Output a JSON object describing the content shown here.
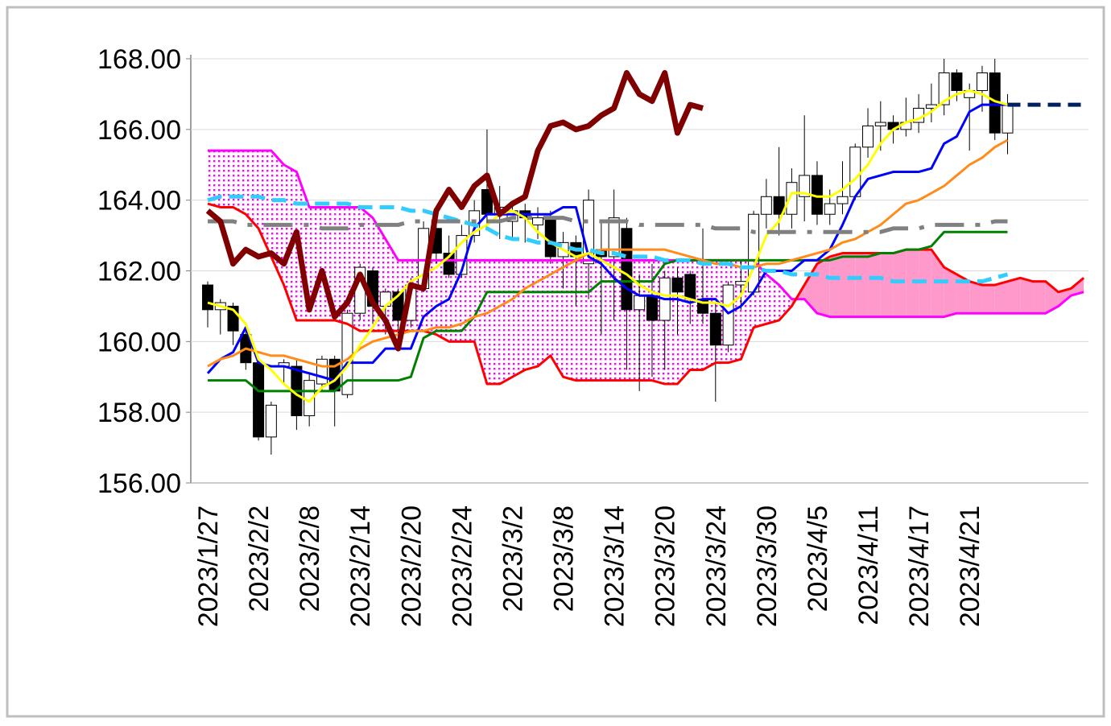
{
  "chart_data": {
    "type": "candlestick",
    "categories": [
      "2023/1/27",
      null,
      null,
      null,
      "2023/2/2",
      null,
      null,
      null,
      "2023/2/8",
      null,
      null,
      null,
      "2023/2/14",
      null,
      null,
      null,
      "2023/2/20",
      null,
      null,
      null,
      "2023/2/24",
      null,
      null,
      null,
      "2023/3/2",
      null,
      null,
      null,
      "2023/3/8",
      null,
      null,
      null,
      "2023/3/14",
      null,
      null,
      null,
      "2023/3/20",
      null,
      null,
      null,
      "2023/3/24",
      null,
      null,
      null,
      "2023/3/30",
      null,
      null,
      null,
      "2023/4/5",
      null,
      null,
      null,
      "2023/4/11",
      null,
      null,
      null,
      "2023/4/17",
      null,
      null,
      null,
      "2023/4/21",
      null,
      null,
      null,
      null,
      null,
      null,
      null,
      null,
      null
    ],
    "ylim": [
      156,
      168
    ],
    "yticks": [
      {
        "value": 156,
        "label": "156.00"
      },
      {
        "value": 158,
        "label": "158.00"
      },
      {
        "value": 160,
        "label": "160.00"
      },
      {
        "value": 162,
        "label": "162.00"
      },
      {
        "value": 164,
        "label": "164.00"
      },
      {
        "value": 166,
        "label": "166.00"
      },
      {
        "value": 168,
        "label": "168.00"
      }
    ],
    "grid": true,
    "up_color": "#ffffff",
    "down_color": "#000000",
    "cloud_colors": [
      "#ff99cc",
      "#ff00ff"
    ],
    "open": [
      161.6,
      160.9,
      161.0,
      160.2,
      159.4,
      157.3,
      159.3,
      159.3,
      157.9,
      158.8,
      159.5,
      158.5,
      160.8,
      162.0,
      161.0,
      161.4,
      160.6,
      161.5,
      163.2,
      162.5,
      161.9,
      163.0,
      164.3,
      163.6,
      163.4,
      163.7,
      163.3,
      163.5,
      162.4,
      162.8,
      162.2,
      162.6,
      162.4,
      163.2,
      160.9,
      161.3,
      160.6,
      161.8,
      161.9,
      161.2,
      160.8,
      159.9,
      161.6,
      161.4,
      163.6,
      164.1,
      163.6,
      164.1,
      164.7,
      163.6,
      163.9,
      164.1,
      165.5,
      166.1,
      166.2,
      166.0,
      166.2,
      166.6,
      166.7,
      167.6,
      166.9,
      167.1,
      167.6,
      165.9,
      null,
      null,
      null,
      null,
      null,
      null
    ],
    "high": [
      161.7,
      161.2,
      161.1,
      160.4,
      159.5,
      158.3,
      159.5,
      159.5,
      159.1,
      159.6,
      159.6,
      160.9,
      162.2,
      162.1,
      161.5,
      161.5,
      161.8,
      163.4,
      163.7,
      163.0,
      163.3,
      164.0,
      166.0,
      164.4,
      163.9,
      163.9,
      163.8,
      163.7,
      163.1,
      163.0,
      164.3,
      163.4,
      164.3,
      163.5,
      161.9,
      162.2,
      162.0,
      162.1,
      162.0,
      163.2,
      161.1,
      161.7,
      162.3,
      163.7,
      164.6,
      165.5,
      164.9,
      166.4,
      165.1,
      164.3,
      165.1,
      165.6,
      166.6,
      166.8,
      166.4,
      166.9,
      167.0,
      167.3,
      168.0,
      167.7,
      167.3,
      167.8,
      168.0,
      167.0,
      null,
      null,
      null,
      null,
      null,
      null
    ],
    "low": [
      160.4,
      160.2,
      159.9,
      159.2,
      157.2,
      156.8,
      158.8,
      157.5,
      157.6,
      158.6,
      157.6,
      158.4,
      160.6,
      160.5,
      160.2,
      160.1,
      160.4,
      161.4,
      162.2,
      161.8,
      161.8,
      162.8,
      163.3,
      162.9,
      162.9,
      162.8,
      162.9,
      162.2,
      161.5,
      161.0,
      161.2,
      160.2,
      160.6,
      159.2,
      158.6,
      159.0,
      159.2,
      160.2,
      160.5,
      160.5,
      158.3,
      159.7,
      160.9,
      161.3,
      163.2,
      163.0,
      163.2,
      163.4,
      163.3,
      163.3,
      163.6,
      164.0,
      165.2,
      165.4,
      165.6,
      165.8,
      165.9,
      166.2,
      166.4,
      166.8,
      165.4,
      166.5,
      165.7,
      165.3,
      null,
      null,
      null,
      null,
      null,
      null
    ],
    "close": [
      160.9,
      161.1,
      160.3,
      159.4,
      157.3,
      158.2,
      159.4,
      157.9,
      158.9,
      159.5,
      158.6,
      160.8,
      162.1,
      161.0,
      161.4,
      160.6,
      161.6,
      163.2,
      162.5,
      161.9,
      163.0,
      163.7,
      163.6,
      163.8,
      163.7,
      163.5,
      163.5,
      162.4,
      162.8,
      162.4,
      164.0,
      162.4,
      163.5,
      160.9,
      161.3,
      160.6,
      161.8,
      161.4,
      161.2,
      160.8,
      159.9,
      161.6,
      161.7,
      163.6,
      164.1,
      163.6,
      164.5,
      164.7,
      163.6,
      163.9,
      164.1,
      165.5,
      166.1,
      166.2,
      166.0,
      166.2,
      166.6,
      166.7,
      167.6,
      167.1,
      167.1,
      167.6,
      165.9,
      166.7,
      null,
      null,
      null,
      null,
      null,
      null
    ],
    "series": [
      {
        "color": "#ff00ff",
        "values": [
          165.4,
          165.4,
          165.4,
          165.4,
          165.4,
          165.4,
          165.0,
          164.8,
          163.8,
          163.8,
          163.8,
          163.8,
          163.8,
          163.5,
          162.9,
          162.3,
          162.3,
          162.3,
          162.3,
          162.3,
          162.3,
          162.3,
          162.3,
          162.3,
          162.3,
          162.3,
          162.3,
          162.3,
          162.3,
          162.3,
          162.3,
          162.3,
          162.3,
          162.3,
          162.3,
          162.3,
          162.3,
          162.3,
          162.3,
          162.3,
          162.3,
          162.3,
          162.3,
          162.3,
          161.9,
          161.6,
          161.2,
          161.2,
          160.8,
          160.7,
          160.7,
          160.7,
          160.7,
          160.7,
          160.7,
          160.7,
          160.7,
          160.7,
          160.7,
          160.8,
          160.8,
          160.8,
          160.8,
          160.8,
          160.8,
          160.8,
          160.8,
          161.0,
          161.3,
          161.4
        ]
      },
      {
        "color": "#ff0000",
        "values": [
          163.9,
          163.8,
          163.8,
          163.6,
          163.2,
          162.4,
          161.6,
          160.6,
          160.6,
          160.6,
          160.6,
          160.5,
          160.3,
          160.3,
          160.3,
          160.3,
          160.3,
          160.3,
          160.2,
          160.0,
          160.0,
          160.0,
          158.8,
          158.8,
          159.0,
          159.2,
          159.3,
          159.6,
          159.0,
          158.9,
          158.9,
          158.9,
          158.9,
          158.9,
          158.9,
          158.9,
          158.8,
          158.8,
          159.2,
          159.2,
          159.4,
          159.4,
          159.5,
          160.4,
          160.5,
          160.6,
          161.0,
          161.6,
          162.2,
          162.4,
          162.5,
          162.5,
          162.5,
          162.5,
          162.5,
          162.6,
          162.6,
          162.6,
          162.1,
          161.9,
          161.7,
          161.6,
          161.6,
          161.7,
          161.8,
          161.7,
          161.7,
          161.4,
          161.5,
          161.8
        ]
      },
      {
        "color": "#008000",
        "values": [
          158.9,
          158.9,
          158.9,
          158.9,
          158.6,
          158.6,
          158.6,
          158.6,
          158.6,
          158.6,
          158.6,
          158.9,
          158.9,
          158.9,
          158.9,
          158.9,
          159.0,
          160.1,
          160.3,
          160.3,
          160.3,
          160.7,
          161.4,
          161.4,
          161.4,
          161.4,
          161.4,
          161.4,
          161.4,
          161.4,
          161.4,
          161.7,
          161.7,
          161.7,
          161.7,
          161.7,
          162.2,
          162.3,
          162.3,
          162.3,
          162.3,
          162.3,
          162.3,
          162.3,
          162.3,
          162.3,
          162.3,
          162.3,
          162.3,
          162.3,
          162.4,
          162.4,
          162.4,
          162.5,
          162.5,
          162.6,
          162.6,
          162.7,
          163.1,
          163.1,
          163.1,
          163.1,
          163.1,
          163.1,
          null,
          null,
          null,
          null,
          null,
          null
        ]
      },
      {
        "color": "#0000ff",
        "values": [
          159.1,
          159.5,
          159.7,
          160.4,
          159.4,
          159.3,
          159.3,
          159.2,
          159.1,
          159.0,
          158.9,
          159.4,
          159.4,
          159.4,
          159.8,
          159.8,
          159.8,
          160.7,
          161.0,
          161.2,
          162.0,
          163.2,
          163.6,
          163.6,
          163.6,
          163.6,
          163.6,
          163.6,
          163.8,
          163.8,
          162.4,
          162.2,
          161.8,
          161.5,
          161.3,
          161.3,
          161.2,
          161.2,
          161.1,
          161.2,
          161.2,
          160.8,
          161.0,
          161.4,
          162.0,
          162.0,
          162.0,
          162.3,
          162.3,
          162.6,
          163.3,
          164.1,
          164.6,
          164.7,
          164.8,
          164.8,
          164.8,
          164.9,
          165.6,
          165.8,
          166.5,
          166.7,
          166.7,
          166.7,
          null,
          null,
          null,
          null,
          null,
          null
        ]
      },
      {
        "color": "#ff8c1a",
        "values": [
          159.3,
          159.5,
          159.6,
          159.8,
          159.7,
          159.6,
          159.6,
          159.5,
          159.4,
          159.3,
          159.3,
          159.5,
          159.8,
          160.0,
          160.1,
          160.2,
          160.3,
          160.3,
          160.4,
          160.4,
          160.5,
          160.7,
          160.8,
          161.0,
          161.2,
          161.5,
          161.7,
          161.9,
          162.1,
          162.3,
          162.5,
          162.6,
          162.6,
          162.6,
          162.6,
          162.6,
          162.6,
          162.5,
          162.4,
          162.3,
          162.2,
          162.2,
          162.1,
          162.1,
          162.2,
          162.2,
          162.3,
          162.4,
          162.5,
          162.6,
          162.8,
          162.9,
          163.1,
          163.3,
          163.6,
          163.9,
          164.0,
          164.2,
          164.4,
          164.7,
          165.0,
          165.2,
          165.5,
          165.7,
          null,
          null,
          null,
          null,
          null,
          null
        ]
      },
      {
        "color": "#ffff00",
        "values": [
          161.1,
          161.0,
          160.9,
          160.5,
          159.5,
          159.2,
          158.8,
          158.5,
          158.3,
          158.7,
          158.9,
          159.3,
          159.9,
          160.4,
          161.0,
          161.3,
          161.7,
          161.9,
          162.1,
          162.4,
          162.8,
          163.1,
          163.3,
          163.6,
          163.7,
          163.5,
          163.1,
          162.8,
          162.6,
          162.4,
          162.5,
          162.3,
          162.1,
          161.9,
          161.6,
          161.4,
          161.3,
          161.3,
          161.2,
          161.1,
          161.1,
          161.0,
          161.3,
          162.1,
          163.0,
          163.4,
          164.2,
          164.2,
          164.1,
          164.1,
          164.3,
          164.6,
          165.0,
          165.6,
          166.0,
          166.2,
          166.3,
          166.5,
          166.8,
          167.0,
          167.1,
          167.0,
          166.8,
          166.7,
          null,
          null,
          null,
          null,
          null,
          null
        ]
      },
      {
        "color": "#33ccff",
        "values": [
          164.0,
          164.1,
          164.1,
          164.1,
          164.1,
          164.0,
          164.0,
          163.9,
          163.9,
          163.9,
          163.9,
          163.9,
          163.8,
          163.8,
          163.8,
          163.8,
          163.7,
          163.7,
          163.6,
          163.5,
          163.4,
          163.3,
          163.2,
          163.0,
          162.9,
          162.9,
          162.8,
          162.8,
          162.7,
          162.6,
          162.6,
          162.5,
          162.5,
          162.4,
          162.4,
          162.4,
          162.3,
          162.3,
          162.3,
          162.2,
          162.2,
          162.2,
          162.1,
          162.1,
          162.0,
          162.0,
          161.9,
          161.9,
          161.9,
          161.8,
          161.8,
          161.8,
          161.8,
          161.8,
          161.7,
          161.7,
          161.7,
          161.7,
          161.7,
          161.7,
          161.7,
          161.7,
          161.8,
          161.9,
          null,
          null,
          null,
          null,
          null,
          null
        ]
      },
      {
        "color": "#808080",
        "values": [
          163.4,
          163.4,
          163.4,
          163.3,
          163.3,
          163.3,
          163.3,
          163.3,
          163.3,
          163.2,
          163.2,
          163.2,
          163.3,
          163.3,
          163.3,
          163.3,
          163.4,
          163.4,
          163.4,
          163.4,
          163.4,
          163.4,
          163.4,
          163.4,
          163.5,
          163.5,
          163.5,
          163.5,
          163.5,
          163.4,
          163.4,
          163.4,
          163.4,
          163.4,
          163.3,
          163.3,
          163.3,
          163.3,
          163.3,
          163.3,
          163.2,
          163.2,
          163.2,
          163.1,
          163.1,
          163.1,
          163.1,
          163.1,
          163.1,
          163.1,
          163.1,
          163.1,
          163.1,
          163.1,
          163.2,
          163.2,
          163.2,
          163.3,
          163.3,
          163.3,
          163.3,
          163.3,
          163.4,
          163.4,
          null,
          null,
          null,
          null,
          null,
          null
        ]
      },
      {
        "color": "#800000",
        "values": [
          163.7,
          163.4,
          162.2,
          162.6,
          162.4,
          162.5,
          162.2,
          163.1,
          160.9,
          162.0,
          160.7,
          161.1,
          161.9,
          161.1,
          160.6,
          159.8,
          161.6,
          161.5,
          163.7,
          164.3,
          163.8,
          164.4,
          164.7,
          163.6,
          163.9,
          164.1,
          165.4,
          166.1,
          166.2,
          166.0,
          166.1,
          166.4,
          166.6,
          167.6,
          167.0,
          166.8,
          167.6,
          165.9,
          166.7,
          166.6,
          null,
          null,
          null,
          null,
          null,
          null,
          null,
          null,
          null,
          null,
          null,
          null,
          null,
          null,
          null,
          null,
          null,
          null,
          null,
          null,
          null,
          null,
          null,
          null,
          null,
          null,
          null,
          null,
          null,
          null
        ]
      },
      {
        "color": "#002060",
        "values": [
          null,
          null,
          null,
          null,
          null,
          null,
          null,
          null,
          null,
          null,
          null,
          null,
          null,
          null,
          null,
          null,
          null,
          null,
          null,
          null,
          null,
          null,
          null,
          null,
          null,
          null,
          null,
          null,
          null,
          null,
          null,
          null,
          null,
          null,
          null,
          null,
          null,
          null,
          null,
          null,
          null,
          null,
          null,
          null,
          null,
          null,
          null,
          null,
          null,
          null,
          null,
          null,
          null,
          null,
          null,
          null,
          null,
          null,
          null,
          null,
          null,
          null,
          null,
          166.7,
          166.7,
          166.7,
          166.7,
          166.7,
          166.7,
          166.7
        ]
      }
    ]
  }
}
